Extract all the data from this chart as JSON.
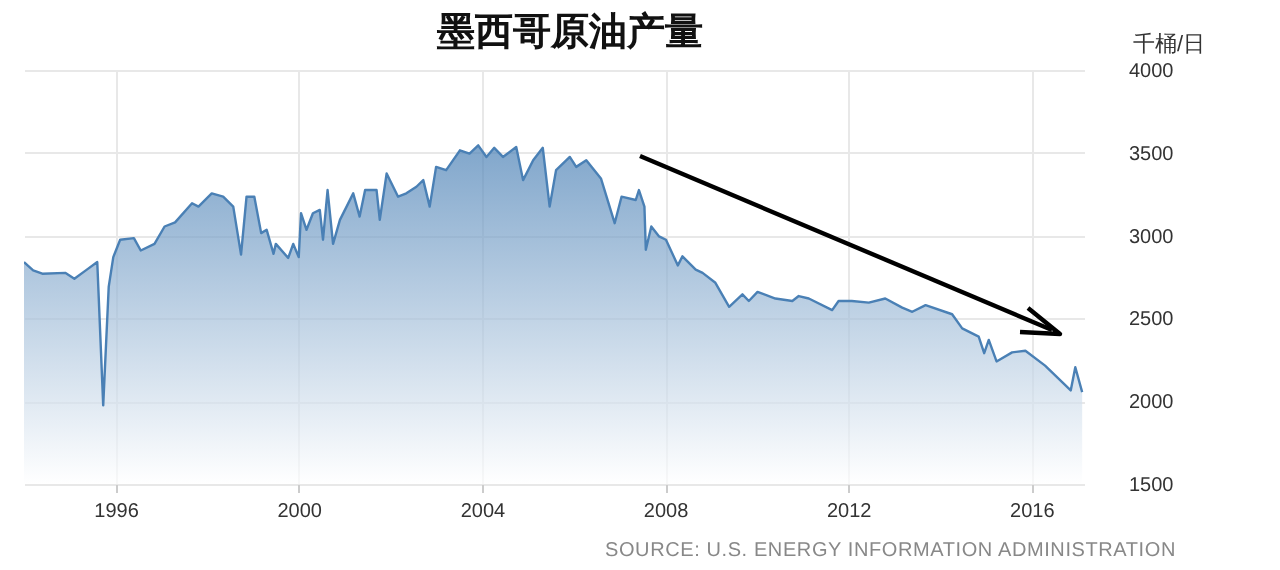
{
  "chart_data": {
    "type": "area",
    "title": "墨西哥原油产量",
    "ylabel": "千桶/日",
    "annotations": [
      "SOURCE: U.S. ENERGY INFORMATION ADMINISTRATION"
    ],
    "xlim": [
      1994,
      2017.15
    ],
    "xticks": [
      1996,
      2000,
      2004,
      2008,
      2012,
      2016
    ],
    "ylim": [
      1500,
      4000
    ],
    "yticks": [
      1500,
      2000,
      2500,
      3000,
      3500,
      4000
    ],
    "grid": true,
    "series": [
      {
        "color": "#4a80b5",
        "x": [
          1994.0,
          1994.2,
          1994.4,
          1994.9,
          1995.1,
          1995.35,
          1995.6,
          1995.73,
          1995.85,
          1995.95,
          1996.1,
          1996.4,
          1996.55,
          1996.85,
          1997.07,
          1997.3,
          1997.67,
          1997.81,
          1998.1,
          1998.35,
          1998.57,
          1998.74,
          1998.86,
          1999.03,
          1999.18,
          1999.3,
          1999.45,
          1999.5,
          1999.77,
          1999.88,
          2000.0,
          2000.05,
          2000.17,
          2000.31,
          2000.46,
          2000.53,
          2000.63,
          2000.75,
          2000.9,
          2001.19,
          2001.33,
          2001.45,
          2001.7,
          2001.77,
          2001.92,
          2002.17,
          2002.35,
          2002.57,
          2002.72,
          2002.86,
          2003.0,
          2003.22,
          2003.52,
          2003.73,
          2003.92,
          2004.1,
          2004.27,
          2004.46,
          2004.75,
          2004.9,
          2005.12,
          2005.33,
          2005.48,
          2005.62,
          2005.92,
          2006.06,
          2006.28,
          2006.6,
          2006.9,
          2007.05,
          2007.36,
          2007.43,
          2007.55,
          2007.58,
          2007.7,
          2007.87,
          2008.02,
          2008.28,
          2008.38,
          2008.67,
          2008.82,
          2009.1,
          2009.4,
          2009.69,
          2009.83,
          2010.02,
          2010.41,
          2010.78,
          2010.92,
          2011.14,
          2011.65,
          2011.79,
          2012.08,
          2012.45,
          2012.81,
          2013.18,
          2013.4,
          2013.69,
          2014.27,
          2014.49,
          2014.85,
          2014.97,
          2015.07,
          2015.24,
          2015.58,
          2015.87,
          2016.3,
          2016.86,
          2016.96,
          2017.11
        ],
        "values": [
          2840,
          2790,
          2770,
          2775,
          2740,
          2790,
          2840,
          1975,
          2690,
          2870,
          2975,
          2985,
          2910,
          2950,
          3055,
          3080,
          3195,
          3175,
          3255,
          3235,
          3175,
          2885,
          3235,
          3235,
          3015,
          3035,
          2890,
          2950,
          2865,
          2950,
          2870,
          3135,
          3035,
          3135,
          3155,
          2975,
          3275,
          2950,
          3095,
          3255,
          3115,
          3275,
          3275,
          3095,
          3375,
          3235,
          3255,
          3295,
          3335,
          3175,
          3415,
          3395,
          3515,
          3495,
          3545,
          3475,
          3530,
          3475,
          3535,
          3335,
          3455,
          3530,
          3175,
          3395,
          3475,
          3415,
          3455,
          3345,
          3075,
          3235,
          3215,
          3275,
          3175,
          2915,
          3055,
          2995,
          2975,
          2820,
          2875,
          2795,
          2775,
          2715,
          2570,
          2645,
          2605,
          2660,
          2620,
          2605,
          2635,
          2620,
          2550,
          2605,
          2605,
          2595,
          2620,
          2565,
          2540,
          2580,
          2525,
          2440,
          2390,
          2290,
          2370,
          2240,
          2295,
          2305,
          2215,
          2065,
          2205,
          2055
        ]
      }
    ]
  }
}
